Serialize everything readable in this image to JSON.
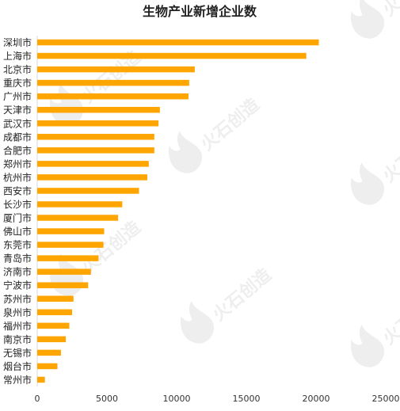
{
  "chart_data": {
    "type": "bar",
    "orientation": "horizontal",
    "title": "生物产业新增企业数",
    "categories": [
      "深圳市",
      "上海市",
      "北京市",
      "重庆市",
      "广州市",
      "天津市",
      "武汉市",
      "成都市",
      "合肥市",
      "郑州市",
      "杭州市",
      "西安市",
      "长沙市",
      "厦门市",
      "佛山市",
      "东莞市",
      "青岛市",
      "济南市",
      "宁波市",
      "苏州市",
      "泉州市",
      "福州市",
      "南京市",
      "无锡市",
      "烟台市",
      "常州市"
    ],
    "values": [
      20200,
      19300,
      11300,
      10900,
      10850,
      8800,
      8700,
      8400,
      8400,
      8000,
      7900,
      7300,
      6100,
      5800,
      4800,
      4750,
      4400,
      3850,
      3650,
      2600,
      2500,
      2300,
      2050,
      1700,
      1450,
      550
    ],
    "xlim": [
      0,
      25000
    ],
    "xticks": [
      "0",
      "5000",
      "10000",
      "15000",
      "20000",
      "25000"
    ],
    "bar_color": "#FFA500",
    "grid": false,
    "legend": "none"
  },
  "watermark": {
    "text": "火石创造",
    "color": "#eeeeee"
  }
}
